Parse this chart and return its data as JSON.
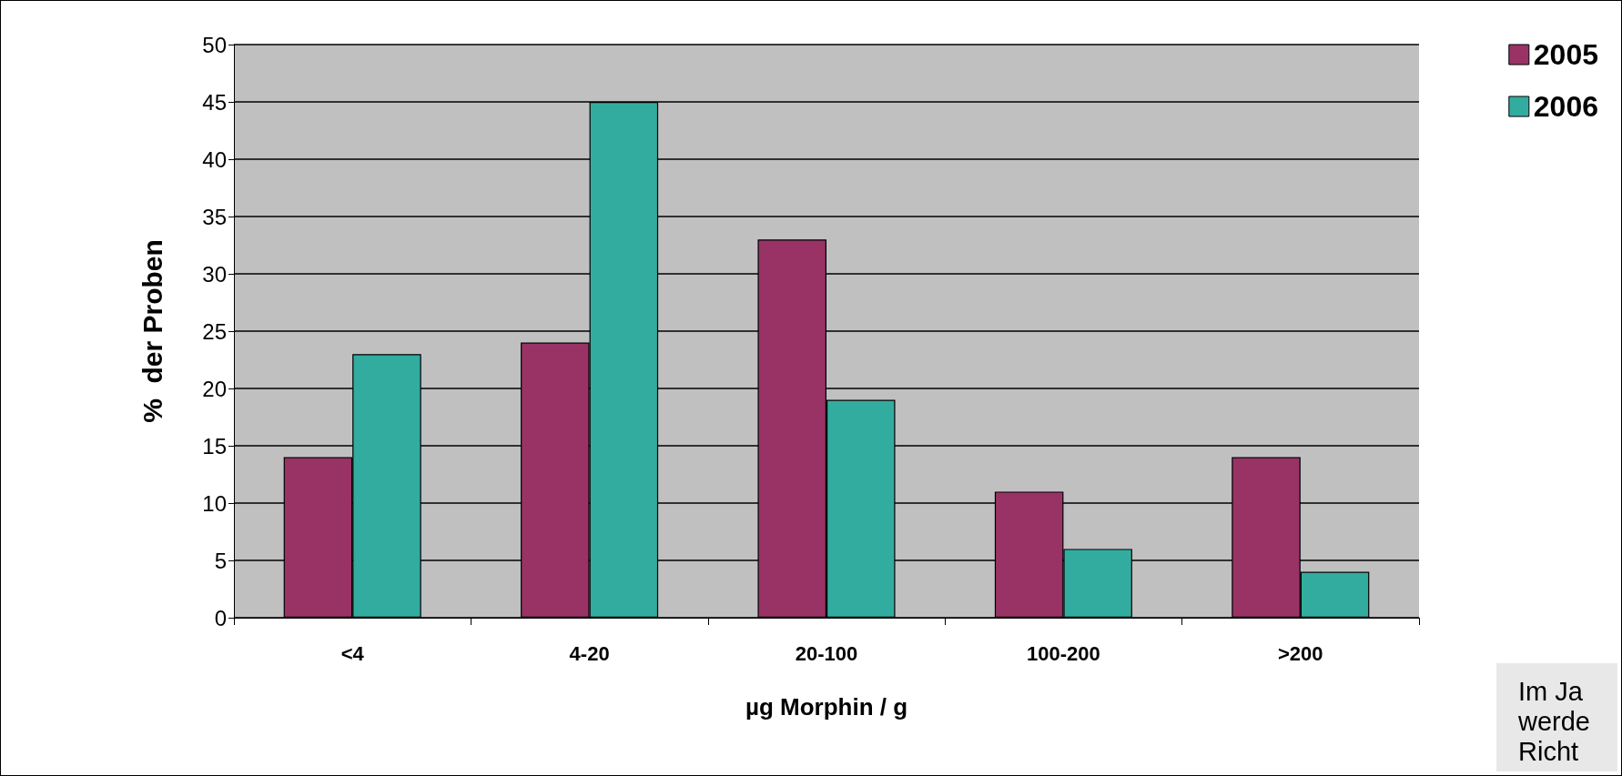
{
  "chart_data": {
    "type": "bar",
    "xlabel": "µg Morphin / g",
    "ylabel": "%  der Proben",
    "categories": [
      "<4",
      "4-20",
      "20-100",
      "100-200",
      ">200"
    ],
    "series": [
      {
        "name": "2005",
        "color": "#993366",
        "values": [
          14,
          24,
          33,
          11,
          14
        ]
      },
      {
        "name": "2006",
        "color": "#33aca0",
        "values": [
          23,
          45,
          19,
          6,
          4
        ]
      }
    ],
    "ylim": [
      0,
      50
    ],
    "yticks": [
      0,
      5,
      10,
      15,
      20,
      25,
      30,
      35,
      40,
      45,
      50
    ],
    "grid": "y",
    "legend": "top right",
    "annotations": [
      "Im Ja\nwerde\nRicht"
    ]
  }
}
